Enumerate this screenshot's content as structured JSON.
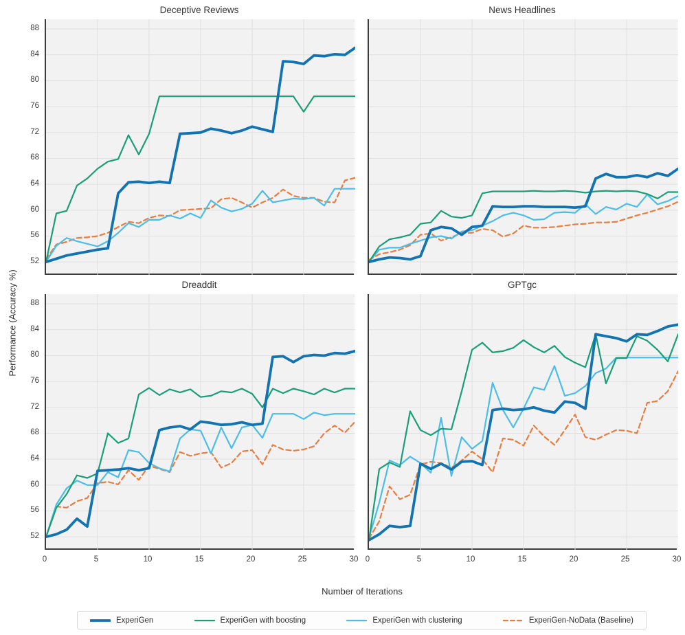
{
  "figure": {
    "x_axis_label": "Number of Iterations",
    "y_axis_label": "Performance (Accuracy %)"
  },
  "chart_data": {
    "type": "line",
    "xlabel": "Number of Iterations",
    "ylabel": "Performance (Accuracy %)",
    "x_min": 0,
    "x_max": 30,
    "ylim": [
      50,
      89.5
    ],
    "yticks": [
      52,
      56,
      60,
      64,
      68,
      72,
      76,
      80,
      84,
      88
    ],
    "xticks": [
      0,
      5,
      10,
      15,
      20,
      25,
      30
    ],
    "grid": true,
    "legend_position": "bottom",
    "plot_bg": "#f2f2f2",
    "grid_color": "#e0e0e2",
    "series_styles": [
      {
        "name": "ExperiGen",
        "color": "#1372b0",
        "width": 3.8,
        "dash": null
      },
      {
        "name": "ExperiGen with boosting",
        "color": "#199e77",
        "width": 2.2,
        "dash": null
      },
      {
        "name": "ExperiGen with clustering",
        "color": "#4bbde8",
        "width": 2.2,
        "dash": null
      },
      {
        "name": "ExperiGen-NoData (Baseline)",
        "color": "#e87d3f",
        "width": 2.2,
        "dash": "7 4.5"
      }
    ],
    "charts": [
      {
        "title": "Deceptive Reviews",
        "show_x_ticks": false,
        "show_y_ticks": true,
        "series": [
          {
            "name": "ExperiGen",
            "values": [
              52,
              52.5,
              53,
              53.3,
              53.6,
              53.9,
              54.1,
              62.6,
              64.3,
              64.4,
              64.2,
              64.4,
              64.2,
              71.8,
              71.9,
              72,
              72.6,
              72.3,
              71.9,
              72.3,
              72.9,
              72.5,
              72.1,
              83,
              82.9,
              82.6,
              83.9,
              83.8,
              84.1,
              84,
              85.1
            ]
          },
          {
            "name": "ExperiGen with boosting",
            "values": [
              52,
              59.5,
              59.9,
              63.8,
              64.9,
              66.4,
              67.5,
              67.9,
              71.6,
              68.6,
              71.8,
              77.6,
              77.6,
              77.6,
              77.6,
              77.6,
              77.6,
              77.6,
              77.6,
              77.6,
              77.6,
              77.6,
              77.6,
              77.6,
              77.6,
              75.2,
              77.6,
              77.6,
              77.6,
              77.6,
              77.6
            ]
          },
          {
            "name": "ExperiGen with clustering",
            "values": [
              52,
              54.5,
              55.7,
              55.2,
              54.8,
              54.4,
              55.2,
              56.5,
              58,
              57.4,
              58.5,
              58.5,
              59.2,
              58.7,
              59.5,
              58.8,
              61.5,
              60.4,
              59.8,
              60.2,
              61,
              63,
              61.2,
              61.5,
              61.8,
              61.7,
              61.9,
              60.7,
              63.3,
              63.3,
              63.3
            ]
          },
          {
            "name": "ExperiGen-NoData (Baseline)",
            "values": [
              52.4,
              54.7,
              55.1,
              55.7,
              55.8,
              56,
              56.5,
              57.4,
              58.2,
              58,
              58.8,
              59.2,
              59.1,
              60,
              60.1,
              60.2,
              60.3,
              61.7,
              61.9,
              61.2,
              60.4,
              61.2,
              61.9,
              63.2,
              62.2,
              61.9,
              61.9,
              61.3,
              61.2,
              64.6,
              65
            ]
          }
        ]
      },
      {
        "title": "News Headlines",
        "show_x_ticks": false,
        "show_y_ticks": false,
        "series": [
          {
            "name": "ExperiGen",
            "values": [
              52,
              52.4,
              52.7,
              52.6,
              52.4,
              52.9,
              56.9,
              57.4,
              57.2,
              56.2,
              57.4,
              57.6,
              60.6,
              60.5,
              60.5,
              60.6,
              60.6,
              60.5,
              60.5,
              60.5,
              60.4,
              60.6,
              64.9,
              65.6,
              65.1,
              65.1,
              65.4,
              65.1,
              65.7,
              65.3,
              66.4
            ]
          },
          {
            "name": "ExperiGen with boosting",
            "values": [
              52,
              54.4,
              55.5,
              55.8,
              56.2,
              57.9,
              58.1,
              59.9,
              59,
              58.8,
              59.2,
              62.6,
              62.9,
              62.9,
              62.9,
              62.9,
              63,
              62.9,
              62.9,
              63,
              62.9,
              62.7,
              62.9,
              63,
              62.9,
              63,
              62.9,
              62.5,
              61.8,
              62.8,
              62.8
            ]
          },
          {
            "name": "ExperiGen with clustering",
            "values": [
              52,
              53.9,
              54.2,
              54.2,
              54.8,
              55.3,
              55.8,
              56,
              55.6,
              56.7,
              56.9,
              57.6,
              58.3,
              59.2,
              59.6,
              59.2,
              58.5,
              58.6,
              59.6,
              59.7,
              59.6,
              60.9,
              59.4,
              60.5,
              60.1,
              61,
              60.5,
              62.4,
              60.9,
              61.4,
              62.2
            ]
          },
          {
            "name": "ExperiGen-NoData (Baseline)",
            "values": [
              52.3,
              53.2,
              53.5,
              53.9,
              54.6,
              56.2,
              56.4,
              55.3,
              55.8,
              56.5,
              56.5,
              57.1,
              56.9,
              55.9,
              56.4,
              57.6,
              57.3,
              57.3,
              57.4,
              57.6,
              57.8,
              57.9,
              58.1,
              58.1,
              58.2,
              58.7,
              59.2,
              59.6,
              60.1,
              60.6,
              61.3
            ]
          }
        ]
      },
      {
        "title": "Dreaddit",
        "show_x_ticks": true,
        "show_y_ticks": true,
        "series": [
          {
            "name": "ExperiGen",
            "values": [
              52,
              52.4,
              53.1,
              54.8,
              53.6,
              62.2,
              62.3,
              62.4,
              62.6,
              62.3,
              62.6,
              68.5,
              68.9,
              69.1,
              68.6,
              69.8,
              69.6,
              69.3,
              69.4,
              69.7,
              69.3,
              69.5,
              79.8,
              79.9,
              79,
              79.9,
              80.1,
              80,
              80.4,
              80.3,
              80.7
            ]
          },
          {
            "name": "ExperiGen with boosting",
            "values": [
              52,
              56.5,
              58.6,
              61.5,
              61.1,
              61.8,
              68,
              66.5,
              67.2,
              74,
              75,
              73.9,
              74.8,
              74.3,
              74.8,
              73.6,
              73.8,
              74.5,
              74.3,
              74.9,
              74.1,
              72,
              74.9,
              74.2,
              74.9,
              74.5,
              74,
              74.9,
              74.3,
              74.9,
              74.9
            ]
          },
          {
            "name": "ExperiGen with clustering",
            "values": [
              52,
              57,
              59.5,
              60.7,
              60,
              60,
              62,
              61.2,
              65.4,
              65.1,
              63.4,
              62.6,
              62.1,
              67.2,
              68.6,
              68.4,
              64.9,
              68.9,
              65.7,
              68.9,
              69.3,
              67.3,
              71,
              71,
              71,
              70.2,
              71.2,
              70.8,
              71,
              71,
              71
            ]
          },
          {
            "name": "ExperiGen-NoData (Baseline)",
            "values": [
              52,
              56.7,
              56.5,
              57.5,
              58,
              60.3,
              60.5,
              60.1,
              62.3,
              60.8,
              63,
              62.5,
              62,
              65.1,
              64.5,
              64.9,
              65.1,
              62.7,
              63.4,
              65.2,
              65.4,
              63.2,
              66.2,
              65.5,
              65.3,
              65.5,
              66,
              68,
              69.2,
              68.1,
              69.8
            ]
          }
        ]
      },
      {
        "title": "GPTgc",
        "show_x_ticks": true,
        "show_y_ticks": false,
        "series": [
          {
            "name": "ExperiGen",
            "values": [
              51.5,
              52.4,
              53.7,
              53.5,
              53.7,
              63.3,
              62.5,
              63.3,
              62.4,
              63.6,
              63.7,
              63.1,
              71.6,
              71.8,
              71.6,
              71.7,
              72,
              71.5,
              71.2,
              72.9,
              72.7,
              71.8,
              83.3,
              83,
              82.7,
              82.2,
              83.3,
              83.2,
              83.8,
              84.5,
              84.8
            ]
          },
          {
            "name": "ExperiGen with boosting",
            "values": [
              51.5,
              62.5,
              63.5,
              62.8,
              71.4,
              68.5,
              67.7,
              68.7,
              68.6,
              74.5,
              80.9,
              82,
              80.5,
              80.7,
              81.2,
              82.4,
              81.3,
              80.5,
              81.5,
              79.8,
              78.9,
              78.2,
              83.3,
              75.7,
              79.6,
              79.6,
              83,
              82.3,
              80.9,
              79.1,
              83.3
            ]
          },
          {
            "name": "ExperiGen with clustering",
            "values": [
              51.8,
              57.3,
              63.8,
              63.1,
              64.4,
              63.4,
              61.9,
              70.4,
              61.4,
              67.4,
              65.6,
              66.8,
              75.8,
              71.6,
              68.9,
              71.8,
              75.1,
              74.7,
              78.4,
              73.8,
              74.2,
              75.3,
              77.3,
              78,
              79.7,
              79.7,
              79.7,
              79.7,
              79.7,
              79.7,
              79.7
            ]
          },
          {
            "name": "ExperiGen-NoData (Baseline)",
            "values": [
              51.7,
              54.4,
              59.8,
              57.8,
              58.5,
              63.2,
              63.6,
              63.4,
              62.7,
              63.8,
              65.2,
              64,
              62,
              67.2,
              67,
              66.1,
              69.2,
              67.5,
              66.2,
              68.5,
              70.9,
              67.4,
              67,
              67.8,
              68.5,
              68.4,
              68,
              72.7,
              73,
              74.5,
              77.6
            ]
          }
        ]
      }
    ]
  }
}
